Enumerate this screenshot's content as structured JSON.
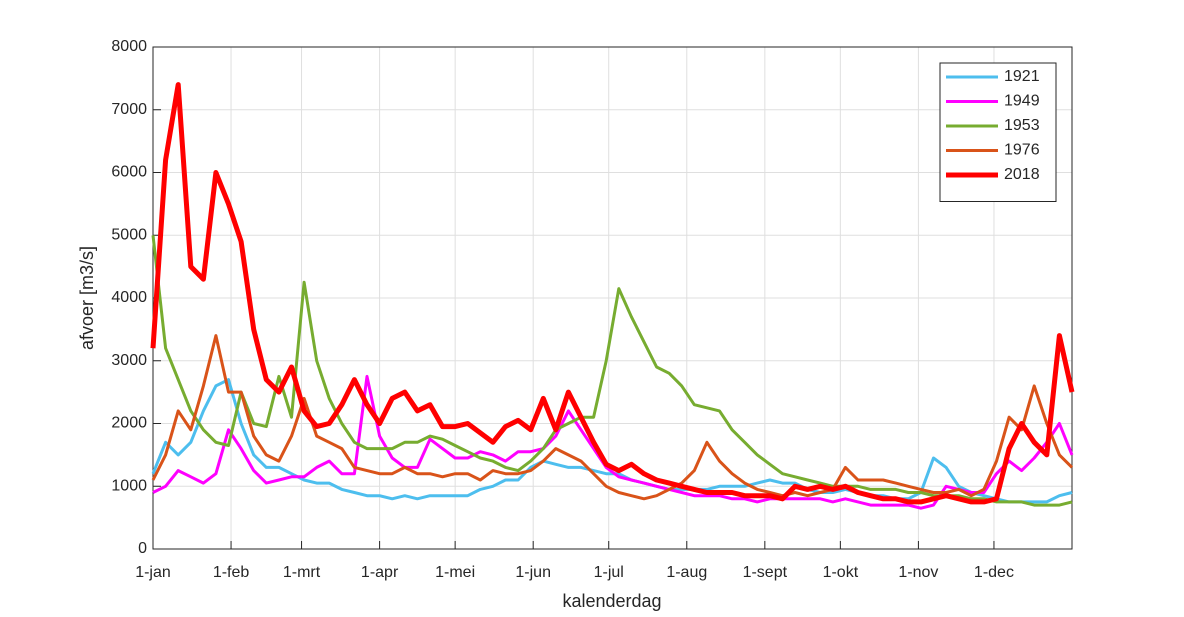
{
  "chart_data": {
    "type": "line",
    "xlabel": "kalenderdag",
    "ylabel": "afvoer [m3/s]",
    "x": [
      0,
      5,
      10,
      15,
      20,
      25,
      30,
      35,
      40,
      45,
      50,
      55,
      60,
      65,
      70,
      75,
      80,
      85,
      90,
      95,
      100,
      105,
      110,
      115,
      120,
      125,
      130,
      135,
      140,
      145,
      150,
      155,
      160,
      165,
      170,
      175,
      180,
      185,
      190,
      195,
      200,
      205,
      210,
      215,
      220,
      225,
      230,
      235,
      240,
      245,
      250,
      255,
      260,
      265,
      270,
      275,
      280,
      285,
      290,
      295,
      300,
      305,
      310,
      315,
      320,
      325,
      330,
      335,
      340,
      345,
      350,
      355,
      360,
      365
    ],
    "xlim": [
      0,
      365
    ],
    "xticks": [
      {
        "value": 0,
        "label": "1-jan"
      },
      {
        "value": 31,
        "label": "1-feb"
      },
      {
        "value": 59,
        "label": "1-mrt"
      },
      {
        "value": 90,
        "label": "1-apr"
      },
      {
        "value": 120,
        "label": "1-mei"
      },
      {
        "value": 151,
        "label": "1-jun"
      },
      {
        "value": 181,
        "label": "1-jul"
      },
      {
        "value": 212,
        "label": "1-aug"
      },
      {
        "value": 243,
        "label": "1-sept"
      },
      {
        "value": 273,
        "label": "1-okt"
      },
      {
        "value": 304,
        "label": "1-nov"
      },
      {
        "value": 334,
        "label": "1-dec"
      }
    ],
    "ylim": [
      0,
      8000
    ],
    "yticks": [
      0,
      1000,
      2000,
      3000,
      4000,
      5000,
      6000,
      7000,
      8000
    ],
    "grid": true,
    "legend": "northeast",
    "series": [
      {
        "name": "1921",
        "color": "#4DBEEE",
        "linewidth": 3,
        "values": [
          1200,
          1700,
          1500,
          1700,
          2200,
          2600,
          2700,
          2000,
          1500,
          1300,
          1300,
          1200,
          1100,
          1050,
          1050,
          950,
          900,
          850,
          850,
          800,
          850,
          800,
          850,
          850,
          850,
          850,
          950,
          1000,
          1100,
          1100,
          1300,
          1400,
          1350,
          1300,
          1300,
          1250,
          1200,
          1200,
          1100,
          1050,
          1000,
          950,
          950,
          950,
          950,
          1000,
          1000,
          1000,
          1050,
          1100,
          1050,
          1050,
          950,
          900,
          900,
          950,
          900,
          850,
          850,
          800,
          800,
          900,
          1450,
          1300,
          1000,
          900,
          850,
          800,
          750,
          750,
          750,
          750,
          850,
          900
        ]
      },
      {
        "name": "1949",
        "color": "#FF00FF",
        "linewidth": 3,
        "values": [
          900,
          1000,
          1250,
          1150,
          1050,
          1200,
          1900,
          1600,
          1250,
          1050,
          1100,
          1150,
          1150,
          1300,
          1400,
          1200,
          1200,
          2750,
          1800,
          1450,
          1300,
          1300,
          1750,
          1600,
          1450,
          1450,
          1550,
          1500,
          1400,
          1550,
          1550,
          1600,
          1800,
          2200,
          1900,
          1600,
          1300,
          1150,
          1100,
          1050,
          1000,
          950,
          900,
          850,
          850,
          850,
          800,
          800,
          750,
          800,
          800,
          800,
          800,
          800,
          750,
          800,
          750,
          700,
          700,
          700,
          700,
          650,
          700,
          1000,
          950,
          900,
          900,
          1200,
          1400,
          1250,
          1450,
          1700,
          2000,
          1500
        ]
      },
      {
        "name": "1953",
        "color": "#77AC30",
        "linewidth": 3,
        "values": [
          5000,
          3200,
          2700,
          2200,
          1900,
          1700,
          1650,
          2500,
          2000,
          1950,
          2750,
          2100,
          4250,
          3000,
          2400,
          2000,
          1700,
          1600,
          1600,
          1600,
          1700,
          1700,
          1800,
          1750,
          1650,
          1550,
          1450,
          1400,
          1300,
          1250,
          1400,
          1600,
          1900,
          2000,
          2100,
          2100,
          3000,
          4150,
          3700,
          3300,
          2900,
          2800,
          2600,
          2300,
          2250,
          2200,
          1900,
          1700,
          1500,
          1350,
          1200,
          1150,
          1100,
          1050,
          1000,
          1000,
          1000,
          950,
          950,
          950,
          900,
          900,
          850,
          850,
          850,
          800,
          800,
          750,
          750,
          750,
          700,
          700,
          700,
          750
        ]
      },
      {
        "name": "1976",
        "color": "#D95319",
        "linewidth": 3,
        "values": [
          1100,
          1500,
          2200,
          1900,
          2600,
          3400,
          2500,
          2500,
          1800,
          1500,
          1400,
          1800,
          2400,
          1800,
          1700,
          1600,
          1300,
          1250,
          1200,
          1200,
          1300,
          1200,
          1200,
          1150,
          1200,
          1200,
          1100,
          1250,
          1200,
          1200,
          1250,
          1400,
          1600,
          1500,
          1400,
          1200,
          1000,
          900,
          850,
          800,
          850,
          950,
          1050,
          1250,
          1700,
          1400,
          1200,
          1050,
          950,
          900,
          850,
          900,
          850,
          900,
          950,
          1300,
          1100,
          1100,
          1100,
          1050,
          1000,
          950,
          900,
          900,
          950,
          850,
          950,
          1400,
          2100,
          1900,
          2600,
          2000,
          1500,
          1300
        ]
      },
      {
        "name": "2018",
        "color": "#FF0000",
        "linewidth": 5,
        "values": [
          3200,
          6200,
          7400,
          4500,
          4300,
          6000,
          5500,
          4900,
          3500,
          2700,
          2500,
          2900,
          2200,
          1950,
          2000,
          2300,
          2700,
          2300,
          2000,
          2400,
          2500,
          2200,
          2300,
          1950,
          1950,
          2000,
          1850,
          1700,
          1950,
          2050,
          1900,
          2400,
          1900,
          2500,
          2100,
          1700,
          1350,
          1250,
          1350,
          1200,
          1100,
          1050,
          1000,
          950,
          900,
          900,
          900,
          850,
          850,
          850,
          800,
          1000,
          950,
          1000,
          950,
          1000,
          900,
          850,
          800,
          800,
          750,
          750,
          800,
          850,
          800,
          750,
          750,
          800,
          1600,
          2000,
          1700,
          1500,
          3400,
          2500
        ]
      }
    ]
  }
}
